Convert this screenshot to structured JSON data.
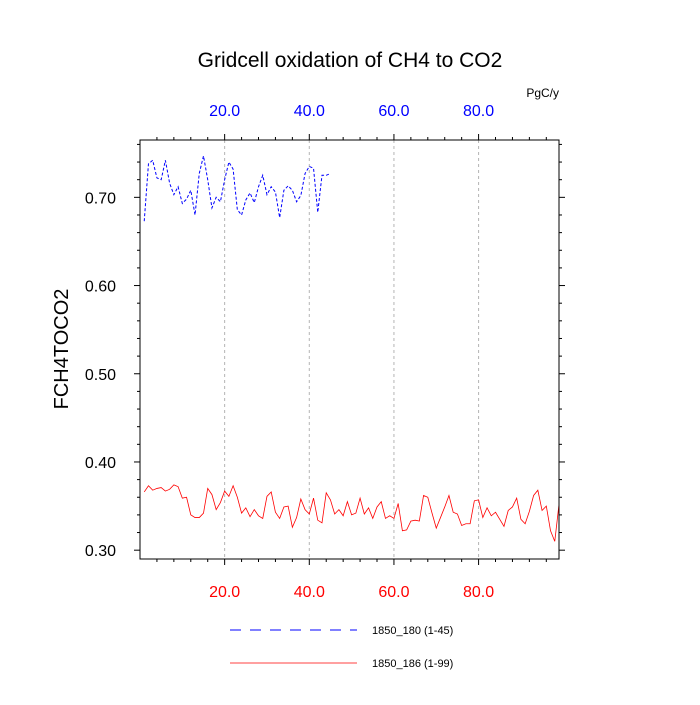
{
  "chart_data": {
    "type": "line",
    "title": "Gridcell oxidation of CH4 to CO2",
    "ylabel": "FCH4TOCO2",
    "units_label": "PgC/y",
    "xlim": [
      0,
      99
    ],
    "ylim": [
      0.29,
      0.765
    ],
    "grid": true,
    "x_ticks": [
      20,
      40,
      60,
      80
    ],
    "x_tick_labels": [
      "20.0",
      "40.0",
      "60.0",
      "80.0"
    ],
    "y_ticks": [
      0.3,
      0.4,
      0.5,
      0.6,
      0.7
    ],
    "y_tick_labels": [
      "0.30",
      "0.40",
      "0.50",
      "0.60",
      "0.70"
    ],
    "legend_placement": "bottom-center",
    "series": [
      {
        "name": "1850_180 (1-45)",
        "color": "#0000ff",
        "dash": "dashed",
        "axis": "top",
        "x": [
          1,
          2,
          3,
          4,
          5,
          6,
          7,
          8,
          9,
          10,
          11,
          12,
          13,
          14,
          15,
          16,
          17,
          18,
          19,
          20,
          21,
          22,
          23,
          24,
          25,
          26,
          27,
          28,
          29,
          30,
          31,
          32,
          33,
          34,
          35,
          36,
          37,
          38,
          39,
          40,
          41,
          42,
          43,
          44,
          45
        ],
        "values": [
          0.673,
          0.738,
          0.742,
          0.722,
          0.72,
          0.742,
          0.716,
          0.703,
          0.712,
          0.693,
          0.698,
          0.708,
          0.68,
          0.727,
          0.747,
          0.72,
          0.688,
          0.7,
          0.695,
          0.72,
          0.74,
          0.732,
          0.686,
          0.68,
          0.697,
          0.705,
          0.694,
          0.712,
          0.725,
          0.703,
          0.712,
          0.706,
          0.677,
          0.708,
          0.713,
          0.708,
          0.695,
          0.702,
          0.727,
          0.735,
          0.733,
          0.683,
          0.725,
          0.725,
          0.727
        ]
      },
      {
        "name": "1850_186 (1-99)",
        "color": "#ff0000",
        "dash": "solid",
        "axis": "bottom",
        "x": [
          1,
          2,
          3,
          4,
          5,
          6,
          7,
          8,
          9,
          10,
          11,
          12,
          13,
          14,
          15,
          16,
          17,
          18,
          19,
          20,
          21,
          22,
          23,
          24,
          25,
          26,
          27,
          28,
          29,
          30,
          31,
          32,
          33,
          34,
          35,
          36,
          37,
          38,
          39,
          40,
          41,
          42,
          43,
          44,
          45,
          46,
          47,
          48,
          49,
          50,
          51,
          52,
          53,
          54,
          55,
          56,
          57,
          58,
          59,
          60,
          61,
          62,
          63,
          64,
          65,
          66,
          67,
          68,
          69,
          70,
          71,
          72,
          73,
          74,
          75,
          76,
          77,
          78,
          79,
          80,
          81,
          82,
          83,
          84,
          85,
          86,
          87,
          88,
          89,
          90,
          91,
          92,
          93,
          94,
          95,
          96,
          97,
          98,
          99
        ],
        "values": [
          0.366,
          0.373,
          0.368,
          0.37,
          0.371,
          0.367,
          0.369,
          0.374,
          0.372,
          0.359,
          0.36,
          0.34,
          0.337,
          0.337,
          0.342,
          0.37,
          0.363,
          0.346,
          0.354,
          0.367,
          0.361,
          0.373,
          0.36,
          0.342,
          0.348,
          0.338,
          0.346,
          0.339,
          0.336,
          0.361,
          0.366,
          0.343,
          0.336,
          0.349,
          0.35,
          0.326,
          0.337,
          0.358,
          0.346,
          0.341,
          0.359,
          0.334,
          0.331,
          0.365,
          0.357,
          0.341,
          0.346,
          0.339,
          0.355,
          0.34,
          0.342,
          0.359,
          0.341,
          0.348,
          0.336,
          0.349,
          0.355,
          0.336,
          0.339,
          0.336,
          0.353,
          0.322,
          0.323,
          0.333,
          0.334,
          0.333,
          0.362,
          0.36,
          0.342,
          0.325,
          0.337,
          0.349,
          0.362,
          0.343,
          0.341,
          0.328,
          0.33,
          0.33,
          0.356,
          0.357,
          0.337,
          0.348,
          0.339,
          0.343,
          0.335,
          0.327,
          0.345,
          0.349,
          0.359,
          0.335,
          0.33,
          0.344,
          0.362,
          0.368,
          0.345,
          0.35,
          0.322,
          0.31,
          0.352
        ]
      }
    ]
  }
}
